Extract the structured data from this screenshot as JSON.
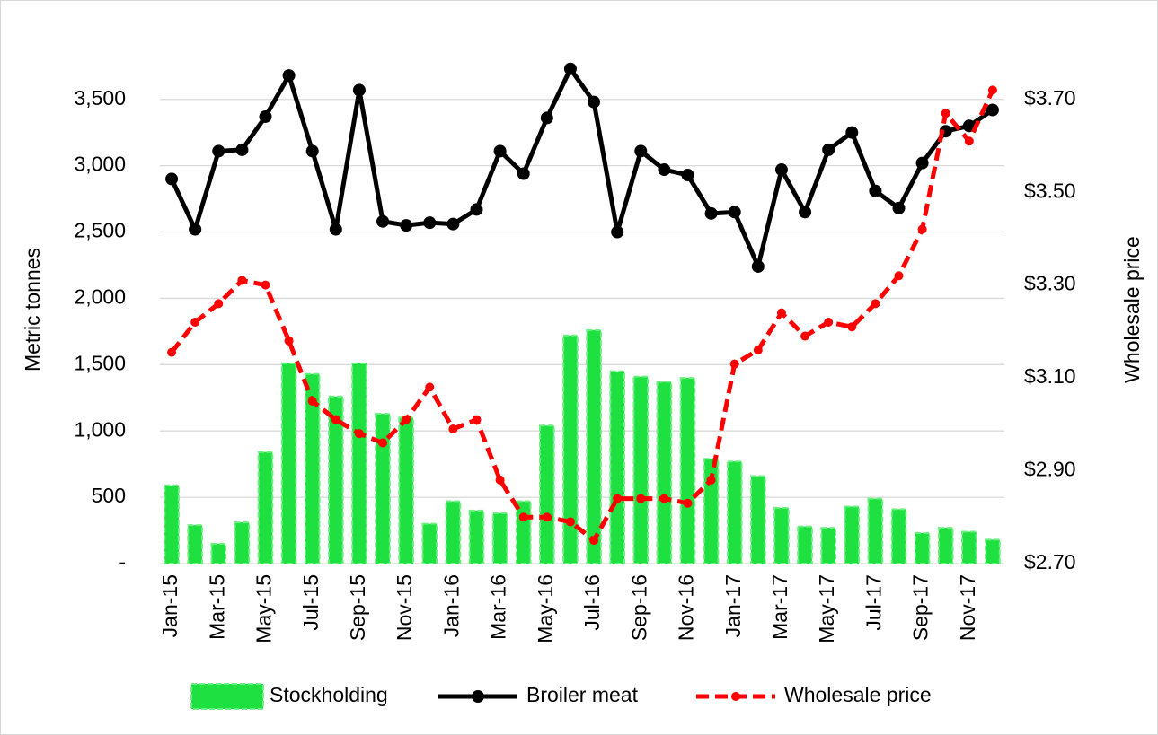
{
  "chart_data": {
    "type": "bar-line",
    "y_label": "Metric tonnes",
    "y2_label": "Wholesale price",
    "categories": [
      "Jan-15",
      null,
      "Mar-15",
      null,
      "May-15",
      null,
      "Jul-15",
      null,
      "Sep-15",
      null,
      "Nov-15",
      null,
      "Jan-16",
      null,
      "Mar-16",
      null,
      "May-16",
      null,
      "Jul-16",
      null,
      "Sep-16",
      null,
      "Nov-16",
      null,
      "Jan-17",
      null,
      "Mar-17",
      null,
      "May-17",
      null,
      "Jul-17",
      null,
      "Sep-17",
      null,
      "Nov-17",
      null
    ],
    "series": [
      {
        "name": "Stockholding",
        "type": "bar",
        "color": "#1ee040",
        "axis": "y",
        "values": [
          590,
          290,
          150,
          310,
          840,
          1510,
          1430,
          1260,
          1510,
          1130,
          1100,
          300,
          470,
          400,
          380,
          470,
          1040,
          1720,
          1760,
          1450,
          1410,
          1370,
          1400,
          790,
          770,
          660,
          420,
          280,
          270,
          430,
          490,
          410,
          230,
          270,
          240,
          180
        ]
      },
      {
        "name": "Broiler meat",
        "type": "line",
        "color": "#000000",
        "axis": "y",
        "values": [
          2900,
          2520,
          3110,
          3120,
          3370,
          3680,
          3110,
          2520,
          3570,
          2580,
          2550,
          2570,
          2560,
          2670,
          3110,
          2940,
          3360,
          3730,
          3480,
          2500,
          3110,
          2970,
          2930,
          2640,
          2650,
          2240,
          2970,
          2650,
          3120,
          3250,
          2810,
          2680,
          3020,
          3260,
          3300,
          3420
        ]
      },
      {
        "name": "Wholesale price",
        "type": "dashed-line",
        "color": "#ff0000",
        "axis": "y2",
        "values": [
          3.155,
          3.22,
          3.26,
          3.31,
          3.3,
          3.18,
          3.05,
          3.01,
          2.98,
          2.96,
          3.01,
          3.08,
          2.99,
          3.01,
          2.88,
          2.8,
          2.8,
          2.79,
          2.75,
          2.84,
          2.84,
          2.84,
          2.83,
          2.88,
          3.13,
          3.16,
          3.24,
          3.19,
          3.22,
          3.21,
          3.26,
          3.32,
          3.42,
          3.67,
          3.61,
          3.72
        ]
      }
    ],
    "ylim": [
      0,
      3850
    ],
    "yticks": [
      {
        "value": 0,
        "label": "-"
      },
      500,
      {
        "value": 1000,
        "label": "1,000"
      },
      {
        "value": 1500,
        "label": "1,500"
      },
      {
        "value": 2000,
        "label": "2,000"
      },
      {
        "value": 2500,
        "label": "2,500"
      },
      {
        "value": 3000,
        "label": "3,000"
      },
      {
        "value": 3500,
        "label": "3,500"
      }
    ],
    "y2lim": [
      2.7,
      3.8
    ],
    "y2ticks": [
      {
        "value": 2.7,
        "label": "$2.70"
      },
      {
        "value": 2.9,
        "label": "$2.90"
      },
      {
        "value": 3.1,
        "label": "$3.10"
      },
      {
        "value": 3.3,
        "label": "$3.30"
      },
      {
        "value": 3.5,
        "label": "$3.50"
      },
      {
        "value": 3.7,
        "label": "$3.70"
      }
    ],
    "grid": true,
    "legend": "bottom"
  }
}
